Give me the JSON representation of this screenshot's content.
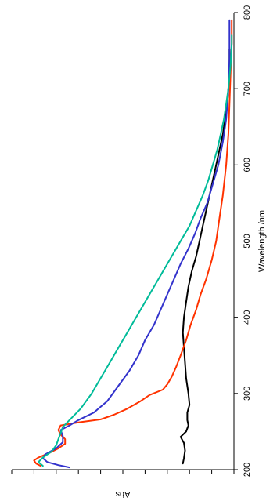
{
  "chart_data": {
    "type": "line",
    "orientation": "rotated-90",
    "xlabel": "Wavelength /nm",
    "ylabel": "Abs",
    "xlim": [
      200,
      800
    ],
    "ylim": [
      0,
      1
    ],
    "x_ticks": [
      200,
      300,
      400,
      500,
      600,
      700,
      800
    ],
    "y_tick_count": 10,
    "y_tick_labels_shown": false,
    "grid": false,
    "series": [
      {
        "color": "#000000",
        "points": [
          [
            208,
            0.23
          ],
          [
            215,
            0.225
          ],
          [
            225,
            0.22
          ],
          [
            235,
            0.225
          ],
          [
            243,
            0.24
          ],
          [
            250,
            0.215
          ],
          [
            258,
            0.205
          ],
          [
            265,
            0.21
          ],
          [
            275,
            0.21
          ],
          [
            285,
            0.2
          ],
          [
            300,
            0.205
          ],
          [
            320,
            0.215
          ],
          [
            340,
            0.22
          ],
          [
            360,
            0.225
          ],
          [
            380,
            0.23
          ],
          [
            400,
            0.225
          ],
          [
            420,
            0.215
          ],
          [
            440,
            0.205
          ],
          [
            460,
            0.19
          ],
          [
            480,
            0.17
          ],
          [
            500,
            0.155
          ],
          [
            520,
            0.14
          ],
          [
            540,
            0.125
          ],
          [
            560,
            0.11
          ],
          [
            580,
            0.095
          ],
          [
            600,
            0.08
          ],
          [
            620,
            0.065
          ],
          [
            640,
            0.05
          ],
          [
            660,
            0.04
          ],
          [
            680,
            0.03
          ],
          [
            700,
            0.025
          ],
          [
            720,
            0.02
          ],
          [
            740,
            0.02
          ],
          [
            752,
            0.02
          ]
        ]
      },
      {
        "color": "#ff3300",
        "points": [
          [
            205,
            0.87
          ],
          [
            208,
            0.89
          ],
          [
            212,
            0.9
          ],
          [
            216,
            0.88
          ],
          [
            222,
            0.83
          ],
          [
            228,
            0.79
          ],
          [
            234,
            0.76
          ],
          [
            240,
            0.76
          ],
          [
            246,
            0.78
          ],
          [
            252,
            0.79
          ],
          [
            258,
            0.78
          ],
          [
            262,
            0.7
          ],
          [
            266,
            0.6
          ],
          [
            272,
            0.54
          ],
          [
            280,
            0.48
          ],
          [
            290,
            0.42
          ],
          [
            298,
            0.38
          ],
          [
            305,
            0.32
          ],
          [
            312,
            0.3
          ],
          [
            322,
            0.28
          ],
          [
            335,
            0.26
          ],
          [
            350,
            0.24
          ],
          [
            370,
            0.215
          ],
          [
            390,
            0.195
          ],
          [
            410,
            0.17
          ],
          [
            430,
            0.15
          ],
          [
            450,
            0.125
          ],
          [
            475,
            0.1
          ],
          [
            500,
            0.08
          ],
          [
            530,
            0.065
          ],
          [
            560,
            0.05
          ],
          [
            600,
            0.035
          ],
          [
            640,
            0.025
          ],
          [
            680,
            0.02
          ],
          [
            720,
            0.015
          ],
          [
            760,
            0.01
          ],
          [
            790,
            0.01
          ]
        ]
      },
      {
        "color": "#3333cc",
        "points": [
          [
            203,
            0.74
          ],
          [
            206,
            0.79
          ],
          [
            210,
            0.84
          ],
          [
            215,
            0.86
          ],
          [
            220,
            0.85
          ],
          [
            228,
            0.8
          ],
          [
            236,
            0.77
          ],
          [
            244,
            0.77
          ],
          [
            252,
            0.78
          ],
          [
            258,
            0.74
          ],
          [
            265,
            0.7
          ],
          [
            275,
            0.63
          ],
          [
            290,
            0.57
          ],
          [
            310,
            0.52
          ],
          [
            330,
            0.47
          ],
          [
            350,
            0.43
          ],
          [
            370,
            0.4
          ],
          [
            390,
            0.36
          ],
          [
            410,
            0.33
          ],
          [
            430,
            0.3
          ],
          [
            450,
            0.27
          ],
          [
            470,
            0.24
          ],
          [
            490,
            0.205
          ],
          [
            510,
            0.175
          ],
          [
            530,
            0.15
          ],
          [
            550,
            0.12
          ],
          [
            575,
            0.095
          ],
          [
            600,
            0.07
          ],
          [
            630,
            0.05
          ],
          [
            660,
            0.035
          ],
          [
            700,
            0.025
          ],
          [
            740,
            0.02
          ],
          [
            770,
            0.02
          ],
          [
            790,
            0.02
          ]
        ]
      },
      {
        "color": "#00bb99",
        "points": [
          [
            205,
            0.86
          ],
          [
            210,
            0.88
          ],
          [
            216,
            0.86
          ],
          [
            224,
            0.82
          ],
          [
            232,
            0.8
          ],
          [
            240,
            0.79
          ],
          [
            248,
            0.78
          ],
          [
            256,
            0.77
          ],
          [
            265,
            0.74
          ],
          [
            280,
            0.69
          ],
          [
            300,
            0.64
          ],
          [
            320,
            0.6
          ],
          [
            340,
            0.56
          ],
          [
            360,
            0.52
          ],
          [
            380,
            0.48
          ],
          [
            400,
            0.44
          ],
          [
            420,
            0.4
          ],
          [
            440,
            0.36
          ],
          [
            460,
            0.32
          ],
          [
            480,
            0.28
          ],
          [
            500,
            0.24
          ],
          [
            520,
            0.2
          ],
          [
            540,
            0.17
          ],
          [
            560,
            0.14
          ],
          [
            580,
            0.115
          ],
          [
            600,
            0.095
          ],
          [
            620,
            0.075
          ],
          [
            640,
            0.06
          ],
          [
            660,
            0.045
          ],
          [
            680,
            0.035
          ],
          [
            700,
            0.025
          ],
          [
            730,
            0.015
          ],
          [
            760,
            0.01
          ],
          [
            770,
            0.01
          ]
        ]
      }
    ]
  }
}
